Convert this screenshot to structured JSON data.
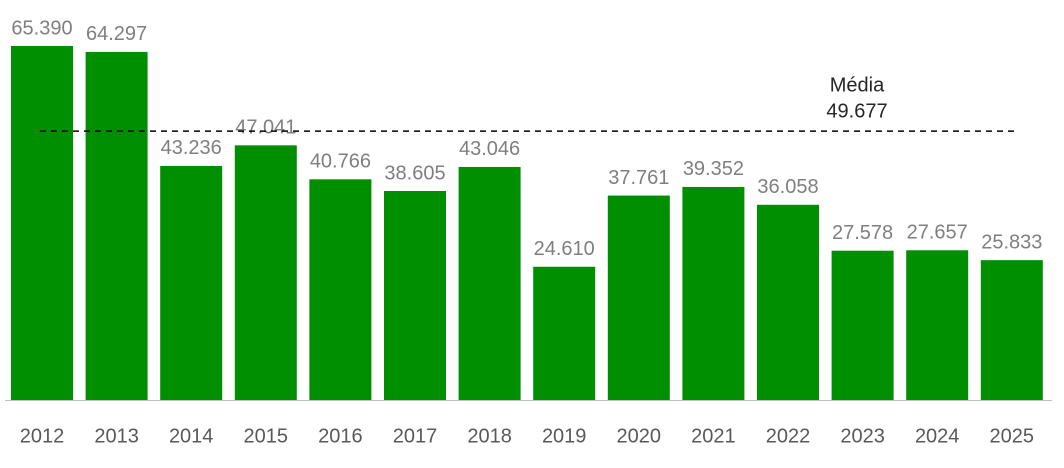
{
  "chart_data": {
    "type": "bar",
    "categories": [
      "2012",
      "2013",
      "2014",
      "2015",
      "2016",
      "2017",
      "2018",
      "2019",
      "2020",
      "2021",
      "2022",
      "2023",
      "2024",
      "2025"
    ],
    "values": [
      65390,
      64297,
      43236,
      47041,
      40766,
      38605,
      43046,
      24610,
      37761,
      39352,
      36058,
      27578,
      27657,
      25833
    ],
    "value_labels": [
      "65.390",
      "64.297",
      "43.236",
      "47.041",
      "40.766",
      "38.605",
      "43.046",
      "24.610",
      "37.761",
      "39.352",
      "36.058",
      "27.578",
      "27.657",
      "25.833"
    ],
    "color": "#008f00",
    "average": {
      "label": "Média",
      "value": 49677,
      "value_label": "49.677"
    }
  }
}
